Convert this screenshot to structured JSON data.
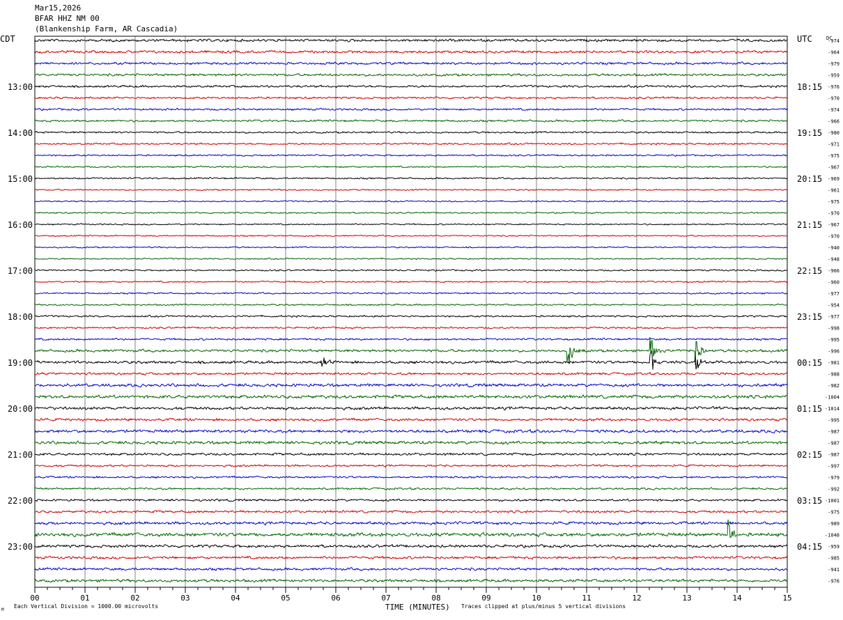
{
  "header": {
    "date": "Mar15,2026",
    "station": "BFAR HHZ NM 00",
    "location": "(Blankenship Farm, AR Cascadia)"
  },
  "left_tz": "CDT",
  "right_tz": "UTC",
  "dc_label": "DC",
  "footer": {
    "left": "Each Vertical Division = 1000.00 microvolts",
    "right": "Traces clipped at plus/minus 5 vertical divisions",
    "corner": "M"
  },
  "colors": {
    "black": "#000000",
    "red": "#d00000",
    "blue": "#0000cc",
    "green": "#006400",
    "grid": "#808080"
  },
  "chart_data": {
    "type": "line",
    "xlabel": "TIME (MINUTES)",
    "xlim": [
      0,
      15
    ],
    "x_ticks": [
      "00",
      "01",
      "02",
      "03",
      "04",
      "05",
      "06",
      "07",
      "08",
      "09",
      "10",
      "11",
      "12",
      "13",
      "14",
      "15"
    ],
    "trace_count": 48,
    "trace_color_cycle": [
      "black",
      "red",
      "blue",
      "green"
    ],
    "left_hour_labels": [
      {
        "trace": 4,
        "label": "13:00"
      },
      {
        "trace": 8,
        "label": "14:00"
      },
      {
        "trace": 12,
        "label": "15:00"
      },
      {
        "trace": 16,
        "label": "16:00"
      },
      {
        "trace": 20,
        "label": "17:00"
      },
      {
        "trace": 24,
        "label": "18:00"
      },
      {
        "trace": 28,
        "label": "19:00"
      },
      {
        "trace": 32,
        "label": "20:00"
      },
      {
        "trace": 36,
        "label": "21:00"
      },
      {
        "trace": 40,
        "label": "22:00"
      },
      {
        "trace": 44,
        "label": "23:00"
      }
    ],
    "right_hour_labels": [
      {
        "trace": 4,
        "label": "18:15"
      },
      {
        "trace": 8,
        "label": "19:15"
      },
      {
        "trace": 12,
        "label": "20:15"
      },
      {
        "trace": 16,
        "label": "21:15"
      },
      {
        "trace": 20,
        "label": "22:15"
      },
      {
        "trace": 24,
        "label": "23:15"
      },
      {
        "trace": 28,
        "label": "00:15"
      },
      {
        "trace": 32,
        "label": "01:15"
      },
      {
        "trace": 36,
        "label": "02:15"
      },
      {
        "trace": 40,
        "label": "03:15"
      },
      {
        "trace": 44,
        "label": "04:15"
      }
    ],
    "dc_offsets": [
      "-974",
      "-964",
      "-979",
      "-959",
      "-976",
      "-970",
      "-974",
      "-966",
      "-980",
      "-971",
      "-975",
      "-967",
      "-969",
      "-961",
      "-975",
      "-970",
      "-967",
      "-970",
      "-940",
      "-948",
      "-966",
      "-960",
      "-977",
      "-954",
      "-977",
      "-998",
      "-995",
      "-996",
      "-981",
      "-988",
      "-982",
      "-1004",
      "-1014",
      "-995",
      "-987",
      "-987",
      "-987",
      "-997",
      "-979",
      "-992",
      "-1001",
      "-975",
      "-989",
      "-1048",
      "-959",
      "-985",
      "-941",
      "-976"
    ],
    "noise_levels": [
      1.3,
      1.3,
      1.2,
      1.2,
      1.1,
      1.0,
      1.0,
      1.0,
      0.9,
      0.9,
      0.8,
      0.8,
      0.8,
      0.7,
      0.7,
      0.7,
      0.7,
      0.7,
      0.7,
      0.7,
      0.8,
      0.8,
      0.8,
      0.8,
      0.9,
      0.9,
      1.0,
      1.3,
      1.4,
      1.2,
      1.5,
      1.6,
      1.4,
      1.3,
      1.5,
      1.5,
      1.2,
      1.0,
      1.0,
      1.0,
      1.1,
      1.2,
      1.4,
      1.8,
      1.4,
      1.3,
      1.3,
      1.4
    ],
    "events": [
      {
        "trace": 27,
        "minute": 10.62,
        "amplitude": 34
      },
      {
        "trace": 27,
        "minute": 12.28,
        "amplitude": 22
      },
      {
        "trace": 27,
        "minute": 13.18,
        "amplitude": 24
      },
      {
        "trace": 28,
        "minute": 5.72,
        "amplitude": 10
      },
      {
        "trace": 28,
        "minute": 12.28,
        "amplitude": 20
      },
      {
        "trace": 28,
        "minute": 13.18,
        "amplitude": 18
      },
      {
        "trace": 43,
        "minute": 13.82,
        "amplitude": 24
      }
    ]
  }
}
